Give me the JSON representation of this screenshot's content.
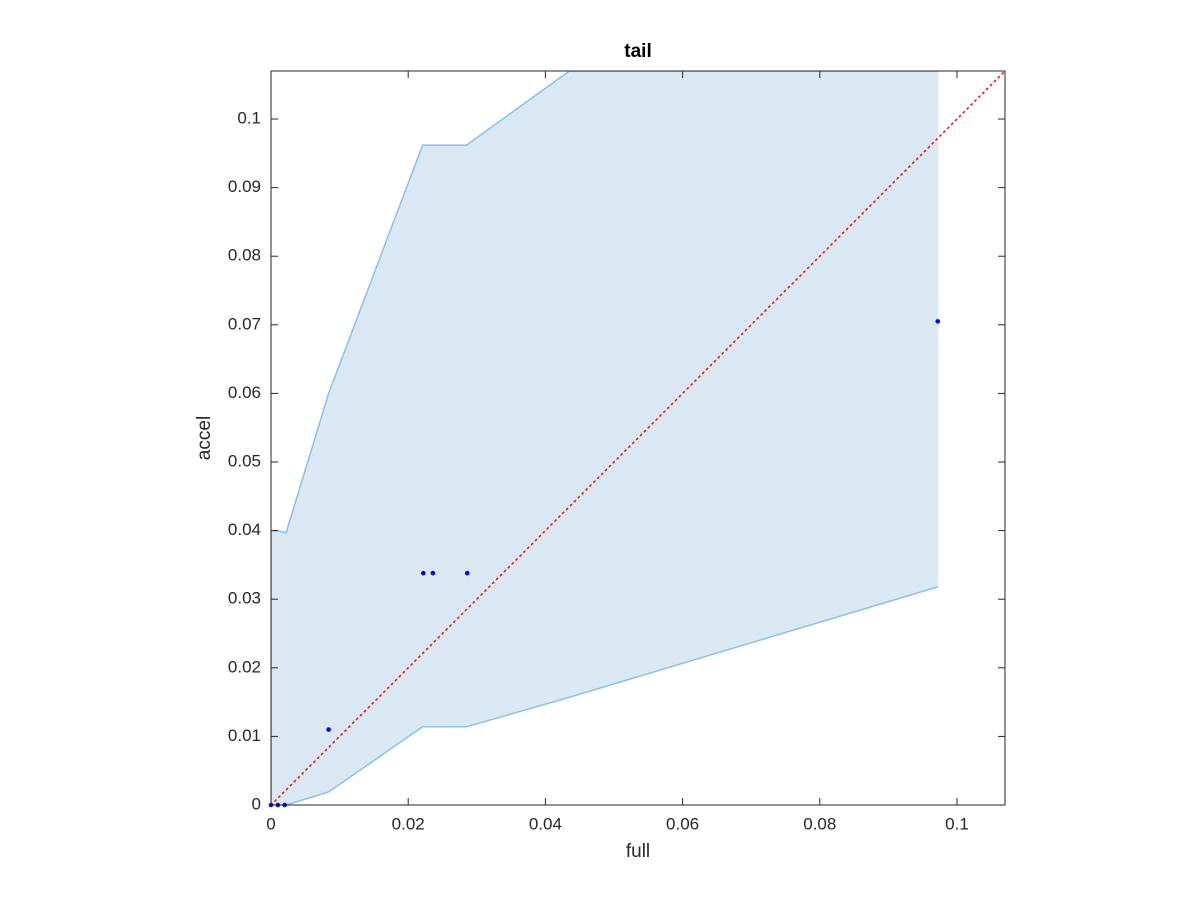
{
  "chart_data": {
    "type": "scatter",
    "title": "tail",
    "x_label": "full",
    "y_label": "accel",
    "x": [
      0,
      0.001,
      0.002,
      0.0084,
      0.0222,
      0.0236,
      0.0286,
      0.0972
    ],
    "y": [
      0,
      0,
      0,
      0.011,
      0.0338,
      0.0338,
      0.0338,
      0.0705
    ],
    "color": "#0000ff",
    "band": {
      "x": [
        0,
        0.001,
        0.0022,
        0.0084,
        0.0221,
        0.0285,
        0.0435,
        0.0972
      ],
      "upper": [
        0.04,
        0.04,
        0.0397,
        0.06,
        0.0962,
        0.0962,
        0.107,
        0.107
      ],
      "lower": [
        0,
        0,
        0,
        0.0019,
        0.0114,
        0.0114,
        0.0157,
        0.0318
      ],
      "fill_color": "#dae8f4",
      "edge_color": "#8cc0e0"
    },
    "identity_line": {
      "color": "#ff0000"
    },
    "xlim": [
      0,
      0.107
    ],
    "ylim": [
      0,
      0.107
    ],
    "xticks": [
      0,
      0.02,
      0.04,
      0.06,
      0.08,
      0.1
    ],
    "yticks": [
      0,
      0.01,
      0.02,
      0.03,
      0.04,
      0.05,
      0.06,
      0.07,
      0.08,
      0.09,
      0.1
    ],
    "box": true
  }
}
